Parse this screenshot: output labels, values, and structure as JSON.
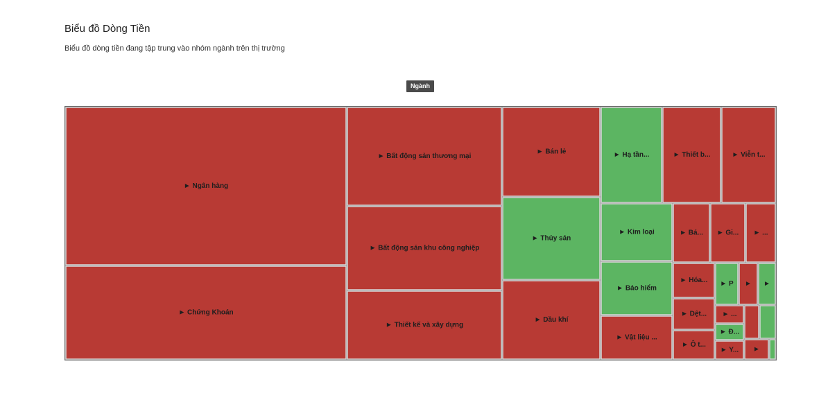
{
  "header": {
    "title": "Biểu đồ Dòng Tiền",
    "subtitle": "Biểu đồ dòng tiền đang tập trung vào nhóm ngành trên thị trường",
    "level_label": "Ngành"
  },
  "colors": {
    "outflow": "#b83a34",
    "inflow": "#5cb562",
    "border": "#6a6a6a"
  },
  "chart_data": {
    "type": "treemap",
    "title": "Biểu đồ Dòng Tiền",
    "subtitle": "Biểu đồ dòng tiền đang tập trung vào nhóm ngành trên thị trường",
    "level": "Ngành",
    "nodes": [
      {
        "label": "► Ngân hàng",
        "status": "outflow"
      },
      {
        "label": "► Chứng Khoán",
        "status": "outflow"
      },
      {
        "label": "► Bất động sản thương mại",
        "status": "outflow"
      },
      {
        "label": "► Bất động sản khu công nghiệp",
        "status": "outflow"
      },
      {
        "label": "► Thiết kế và xây dựng",
        "status": "outflow"
      },
      {
        "label": "► Bán lẻ",
        "status": "outflow"
      },
      {
        "label": "► Thủy sản",
        "status": "inflow"
      },
      {
        "label": "► Dầu khí",
        "status": "outflow"
      },
      {
        "label": "► Hạ tần...",
        "status": "inflow"
      },
      {
        "label": "► Thiết b...",
        "status": "outflow"
      },
      {
        "label": "► Viễn t...",
        "status": "outflow"
      },
      {
        "label": "► Kim loại",
        "status": "inflow"
      },
      {
        "label": "► Bảo hiểm",
        "status": "inflow"
      },
      {
        "label": "► Vật liệu ...",
        "status": "outflow"
      },
      {
        "label": "► Bá...",
        "status": "outflow"
      },
      {
        "label": "► Gi...",
        "status": "outflow"
      },
      {
        "label": "► ...",
        "status": "outflow"
      },
      {
        "label": "► Hóa...",
        "status": "outflow"
      },
      {
        "label": "► Dệt...",
        "status": "outflow"
      },
      {
        "label": "► Ô t...",
        "status": "outflow"
      },
      {
        "label": "► P",
        "status": "inflow"
      },
      {
        "label": "►",
        "status": "outflow"
      },
      {
        "label": "►",
        "status": "inflow"
      },
      {
        "label": "► ...",
        "status": "outflow"
      },
      {
        "label": "",
        "status": "outflow"
      },
      {
        "label": "",
        "status": "inflow"
      },
      {
        "label": "► Đ...",
        "status": "inflow"
      },
      {
        "label": "► Y...",
        "status": "outflow"
      },
      {
        "label": "►",
        "status": "outflow"
      },
      {
        "label": "",
        "status": "inflow"
      }
    ]
  }
}
